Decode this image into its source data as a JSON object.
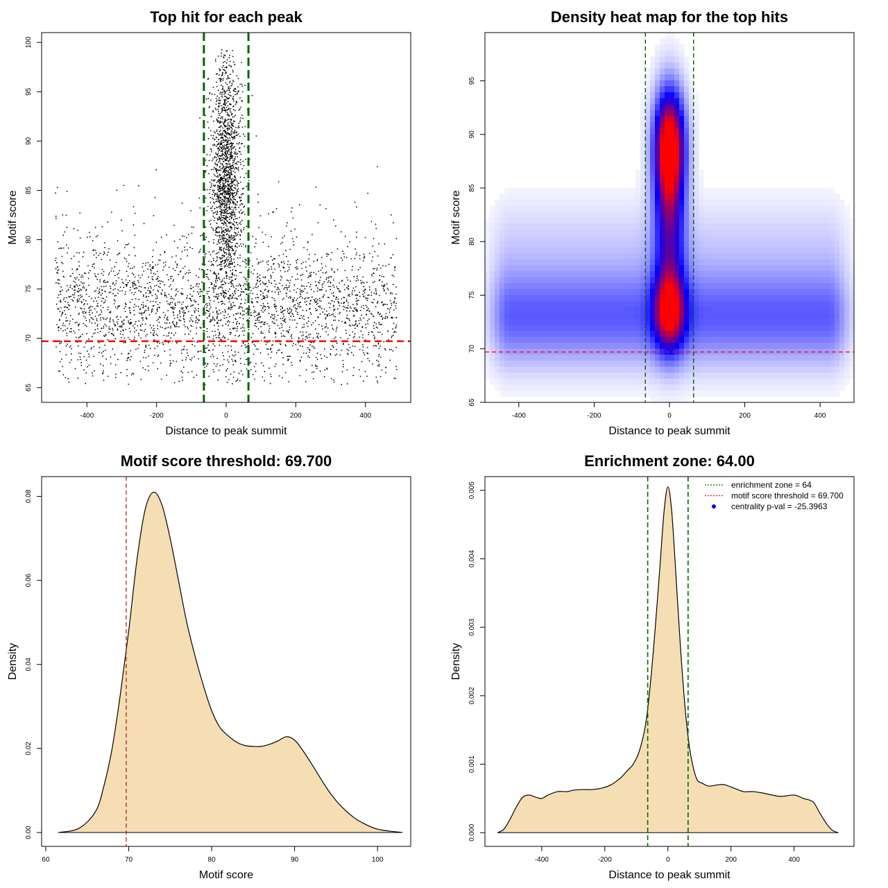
{
  "figure": "four-panel motif analysis",
  "colors": {
    "points": "#000000",
    "threshold_line": "#ff0000",
    "zone_line": "#006400",
    "density_fill": "#f5deb3",
    "heat_low": "#ffffff",
    "heat_mid": "#0000ff",
    "heat_high": "#ff0000"
  },
  "chart_data": [
    {
      "type": "scatter",
      "title": "Top hit for each peak",
      "xlabel": "Distance to peak summit",
      "ylabel": "Motif score",
      "xlim": [
        -530,
        530
      ],
      "ylim": [
        63.5,
        101
      ],
      "xticks": [
        -400,
        -200,
        0,
        200,
        400
      ],
      "yticks": [
        65,
        70,
        75,
        80,
        85,
        90,
        95,
        100
      ],
      "point_count_approx": 4500,
      "background_score_mean": 73,
      "central_score_mean": 86,
      "threshold": 69.7,
      "zone": [
        -64,
        64
      ],
      "grid": false
    },
    {
      "type": "heatmap",
      "title": "Density heat map for the top hits",
      "xlabel": "Distance to peak summit",
      "ylabel": "Motif score",
      "xlim": [
        -490,
        490
      ],
      "ylim": [
        65,
        99.5
      ],
      "xticks": [
        -400,
        -200,
        0,
        200,
        400
      ],
      "yticks": [
        65,
        70,
        75,
        80,
        85,
        90,
        95
      ],
      "peak_density_at": {
        "x": 0,
        "y": 89
      },
      "threshold": 69.7,
      "zone": [
        -64,
        64
      ],
      "grid": false
    },
    {
      "type": "area",
      "title": "Motif score threshold: 69.700",
      "xlabel": "Motif score",
      "ylabel": "Density",
      "xlim": [
        59.5,
        104
      ],
      "ylim": [
        -0.0033,
        0.0847
      ],
      "xticks": [
        60,
        70,
        80,
        90,
        100
      ],
      "yticks": [
        "0.00",
        "0.02",
        "0.04",
        "0.06",
        "0.08"
      ],
      "x": [
        61.5,
        64,
        66,
        67,
        68,
        69,
        70,
        71,
        72,
        73,
        74,
        75,
        76,
        77,
        78,
        79,
        80,
        81,
        82,
        83,
        84,
        85,
        86,
        87,
        88,
        89,
        90,
        91,
        92,
        93,
        94,
        95,
        96,
        97,
        98,
        100,
        103
      ],
      "values": [
        0.0,
        0.001,
        0.005,
        0.011,
        0.02,
        0.033,
        0.048,
        0.065,
        0.077,
        0.081,
        0.078,
        0.07,
        0.06,
        0.05,
        0.042,
        0.035,
        0.029,
        0.025,
        0.023,
        0.0215,
        0.0207,
        0.0205,
        0.0205,
        0.021,
        0.0218,
        0.0228,
        0.022,
        0.0195,
        0.0165,
        0.0133,
        0.0102,
        0.0076,
        0.0055,
        0.0038,
        0.0025,
        0.0008,
        0.0
      ],
      "threshold": 69.7,
      "grid": false
    },
    {
      "type": "area",
      "title": "Enrichment zone: 64.00",
      "xlabel": "Distance to peak summit",
      "ylabel": "Density",
      "xlim": [
        -580,
        590
      ],
      "ylim": [
        -0.0002,
        0.0052
      ],
      "xticks": [
        -400,
        -200,
        0,
        200,
        400
      ],
      "yticks": [
        "0.000",
        "0.001",
        "0.002",
        "0.003",
        "0.004",
        "0.005"
      ],
      "x": [
        -540,
        -520,
        -500,
        -480,
        -460,
        -440,
        -420,
        -400,
        -380,
        -350,
        -320,
        -300,
        -270,
        -240,
        -210,
        -180,
        -150,
        -130,
        -110,
        -90,
        -70,
        -55,
        -40,
        -25,
        -12,
        0,
        12,
        25,
        40,
        55,
        70,
        90,
        110,
        130,
        160,
        180,
        210,
        240,
        270,
        300,
        330,
        360,
        400,
        430,
        460,
        480,
        500,
        520,
        540
      ],
      "values": [
        0.0,
        5e-05,
        0.0002,
        0.00038,
        0.00052,
        0.00055,
        0.00052,
        0.0005,
        0.00055,
        0.0006,
        0.0006,
        0.00062,
        0.00063,
        0.00063,
        0.00065,
        0.0007,
        0.0008,
        0.0009,
        0.001,
        0.0012,
        0.0016,
        0.0022,
        0.003,
        0.0039,
        0.0047,
        0.00505,
        0.0047,
        0.0038,
        0.0027,
        0.0018,
        0.0012,
        0.0008,
        0.00072,
        0.00068,
        0.0007,
        0.0007,
        0.00065,
        0.0006,
        0.0006,
        0.00058,
        0.00055,
        0.00053,
        0.00055,
        0.0005,
        0.00045,
        0.0003,
        0.00015,
        4e-05,
        0.0
      ],
      "zone": [
        -64,
        64
      ],
      "legend": {
        "placement": "top-right",
        "entries": [
          "enrichment zone = 64",
          "motif score threshold = 69.700",
          "centrality p-val = -25.3963"
        ]
      },
      "grid": false
    }
  ]
}
